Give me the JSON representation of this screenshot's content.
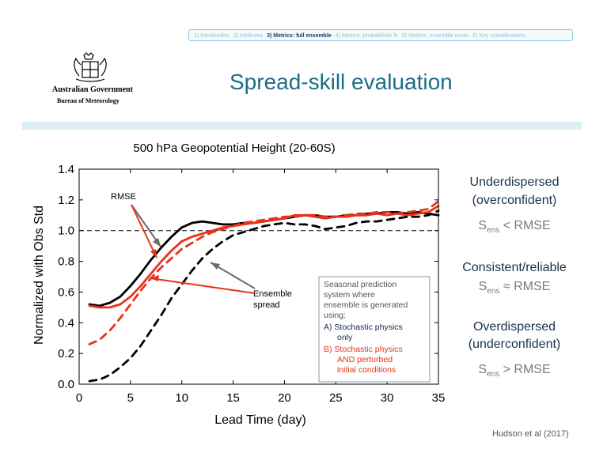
{
  "nav": {
    "items": [
      "1) Introduction",
      "2) Attributes",
      "3) Metrics: full ensemble",
      "4) Metrics: probabilistic fc",
      "5) Metrics: ensemble mean",
      "6) Key considerations"
    ],
    "active_index": 2
  },
  "logo": {
    "government": "Australian Government",
    "bureau": "Bureau of Meteorology"
  },
  "slide": {
    "title": "Spread-skill evaluation",
    "citation": "Hudson et al (2017)"
  },
  "right_panel": {
    "under_title": "Underdispersed",
    "under_sub": "(overconfident)",
    "under_formula": "< RMSE",
    "consistent_title": "Consistent/reliable",
    "consistent_formula": "≈ RMSE",
    "over_title": "Overdispersed",
    "over_sub": "(underconfident)",
    "over_formula": "> RMSE",
    "s_letter": "S",
    "s_subscript": "ens"
  },
  "colors": {
    "title": "#1b6d86",
    "band": "#dbeef5",
    "series_a": "#000000",
    "series_b": "#e8321c",
    "text_dark": "#1a2f4e",
    "formula": "#7a7a7a"
  },
  "chart_data": {
    "type": "line",
    "title": "500 hPa Geopotential Height (20-60S)",
    "xlabel": "Lead Time (day)",
    "ylabel": "Normalized with Obs Std",
    "xlim": [
      0,
      35
    ],
    "ylim": [
      0,
      1.4
    ],
    "xticks": [
      0,
      5,
      10,
      15,
      20,
      25,
      30,
      35
    ],
    "yticks": [
      "0.0",
      "0.2",
      "0.4",
      "0.6",
      "0.8",
      "1.0",
      "1.2",
      "1.4"
    ],
    "reference_line": 1.0,
    "series": [
      {
        "color": "#000000",
        "style": "solid",
        "x": [
          1,
          2,
          3,
          4,
          5,
          6,
          7,
          8,
          9,
          10,
          11,
          12,
          13,
          14,
          15,
          16,
          17,
          18,
          19,
          20,
          21,
          22,
          23,
          24,
          25,
          26,
          27,
          28,
          29,
          30,
          31,
          32,
          33,
          34,
          35
        ],
        "values": [
          0.52,
          0.51,
          0.53,
          0.57,
          0.64,
          0.72,
          0.81,
          0.89,
          0.96,
          1.02,
          1.05,
          1.06,
          1.05,
          1.04,
          1.04,
          1.05,
          1.05,
          1.06,
          1.07,
          1.08,
          1.09,
          1.1,
          1.1,
          1.09,
          1.09,
          1.1,
          1.1,
          1.11,
          1.11,
          1.12,
          1.12,
          1.11,
          1.12,
          1.11,
          1.1
        ]
      },
      {
        "color": "#e8321c",
        "style": "solid",
        "x": [
          1,
          2,
          3,
          4,
          5,
          6,
          7,
          8,
          9,
          10,
          11,
          12,
          13,
          14,
          15,
          16,
          17,
          18,
          19,
          20,
          21,
          22,
          23,
          24,
          25,
          26,
          27,
          28,
          29,
          30,
          31,
          32,
          33,
          34,
          35
        ],
        "values": [
          0.51,
          0.5,
          0.5,
          0.52,
          0.57,
          0.64,
          0.72,
          0.8,
          0.87,
          0.93,
          0.96,
          0.98,
          1.0,
          1.02,
          1.03,
          1.04,
          1.05,
          1.06,
          1.07,
          1.08,
          1.1,
          1.1,
          1.09,
          1.08,
          1.09,
          1.09,
          1.1,
          1.1,
          1.11,
          1.1,
          1.11,
          1.1,
          1.11,
          1.12,
          1.16
        ]
      },
      {
        "color": "#000000",
        "style": "dashed",
        "x": [
          1,
          2,
          3,
          4,
          5,
          6,
          7,
          8,
          9,
          10,
          11,
          12,
          13,
          14,
          15,
          16,
          17,
          18,
          19,
          20,
          21,
          22,
          23,
          24,
          25,
          26,
          27,
          28,
          29,
          30,
          31,
          32,
          33,
          34,
          35
        ],
        "values": [
          0.02,
          0.03,
          0.06,
          0.11,
          0.17,
          0.25,
          0.35,
          0.45,
          0.56,
          0.65,
          0.74,
          0.82,
          0.88,
          0.93,
          0.97,
          0.99,
          1.01,
          1.03,
          1.04,
          1.05,
          1.04,
          1.04,
          1.03,
          1.01,
          1.02,
          1.03,
          1.05,
          1.06,
          1.06,
          1.07,
          1.08,
          1.09,
          1.09,
          1.1,
          1.13
        ]
      },
      {
        "color": "#e8321c",
        "style": "dashed",
        "x": [
          1,
          2,
          3,
          4,
          5,
          6,
          7,
          8,
          9,
          10,
          11,
          12,
          13,
          14,
          15,
          16,
          17,
          18,
          19,
          20,
          21,
          22,
          23,
          24,
          25,
          26,
          27,
          28,
          29,
          30,
          31,
          32,
          33,
          34,
          35
        ],
        "values": [
          0.26,
          0.29,
          0.35,
          0.43,
          0.52,
          0.61,
          0.69,
          0.76,
          0.82,
          0.88,
          0.92,
          0.96,
          0.99,
          1.01,
          1.03,
          1.05,
          1.06,
          1.07,
          1.08,
          1.09,
          1.09,
          1.1,
          1.1,
          1.09,
          1.09,
          1.1,
          1.11,
          1.11,
          1.12,
          1.12,
          1.11,
          1.12,
          1.13,
          1.14,
          1.19
        ]
      }
    ],
    "annotations": {
      "rmse": "RMSE",
      "spread_line1": "Ensemble",
      "spread_line2": "spread"
    },
    "legend": {
      "l1": "Seasonal prediction",
      "l2": "system where",
      "l3": "ensemble is generated",
      "l4": "using:",
      "a1": "A)  Stochastic physics",
      "a2": "only",
      "b1": "B)  Stochastic physics",
      "b2": "AND perturbed",
      "b3": "initial conditions"
    }
  }
}
